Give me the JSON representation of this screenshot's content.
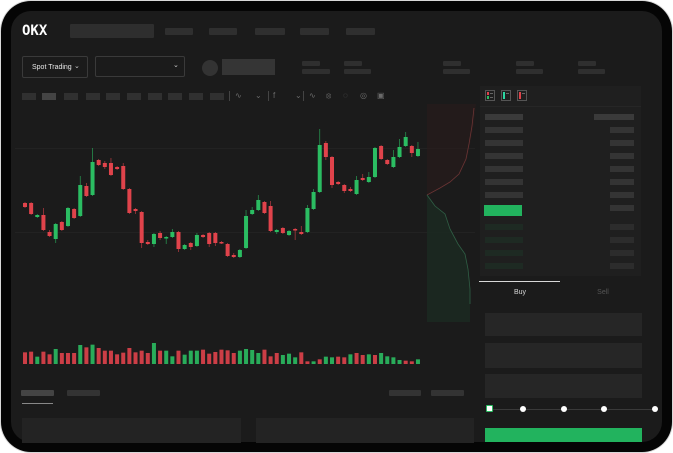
{
  "header": {
    "logo_text": "OKX",
    "market_type_dropdown": "Spot Trading",
    "pair_dropdown": ""
  },
  "colors": {
    "up": "#2bbd62",
    "down": "#e0434b",
    "background": "#1b1b1b",
    "panel": "#1f1f1f",
    "placeholder": "#2f2f2f",
    "buy_button": "#22b35e"
  },
  "orderbook": {
    "view_icons": [
      "orderbook-both-icon",
      "orderbook-bids-icon",
      "orderbook-asks-icon"
    ]
  },
  "trade_form": {
    "tabs": [
      {
        "label": "Buy",
        "active": true
      },
      {
        "label": "Sell",
        "active": false
      }
    ],
    "slider_value_percent": 0,
    "slider_stops": [
      0,
      25,
      50,
      75,
      100
    ]
  },
  "toolbar": {
    "icons": [
      "chart-type-icon",
      "indicator-icon",
      "drawing-line-icon",
      "ruler-icon",
      "snapshot-icon",
      "settings-icon",
      "fullscreen-icon"
    ]
  },
  "price_chart": {
    "type": "candlestick",
    "ohlc": [
      [
        97,
        98,
        92,
        93
      ],
      [
        97,
        98,
        85,
        86
      ],
      [
        83,
        86,
        82,
        85
      ],
      [
        85,
        92,
        69,
        70
      ],
      [
        68,
        70,
        63,
        64
      ],
      [
        61,
        77,
        57,
        76
      ],
      [
        78,
        79,
        69,
        70
      ],
      [
        74,
        93,
        73,
        92
      ],
      [
        91,
        92,
        81,
        82
      ],
      [
        84,
        124,
        83,
        115
      ],
      [
        114,
        117,
        103,
        104
      ],
      [
        105,
        152,
        104,
        138
      ],
      [
        140,
        141,
        134,
        135
      ],
      [
        137,
        139,
        131,
        133
      ],
      [
        137,
        142,
        124,
        125
      ],
      [
        133,
        134,
        130,
        131
      ],
      [
        134,
        137,
        110,
        111
      ],
      [
        111,
        112,
        86,
        87
      ],
      [
        91,
        92,
        86,
        89
      ],
      [
        88,
        89,
        52,
        57
      ],
      [
        58,
        60,
        55,
        56
      ],
      [
        56,
        67,
        53,
        66
      ],
      [
        67,
        69,
        60,
        62
      ],
      [
        62,
        64,
        56,
        63
      ],
      [
        63,
        71,
        62,
        68
      ],
      [
        68,
        69,
        48,
        51
      ],
      [
        51,
        56,
        50,
        55
      ],
      [
        57,
        58,
        50,
        53
      ],
      [
        54,
        67,
        53,
        65
      ],
      [
        65,
        66,
        62,
        63
      ],
      [
        67,
        68,
        53,
        56
      ],
      [
        67,
        68,
        54,
        57
      ],
      [
        58,
        59,
        56,
        57
      ],
      [
        56,
        57,
        43,
        44
      ],
      [
        45,
        47,
        42,
        43
      ],
      [
        43,
        51,
        42,
        50
      ],
      [
        52,
        90,
        51,
        84
      ],
      [
        86,
        93,
        85,
        90
      ],
      [
        90,
        105,
        89,
        100
      ],
      [
        98,
        99,
        86,
        87
      ],
      [
        94,
        99,
        68,
        69
      ],
      [
        68,
        71,
        66,
        70
      ],
      [
        72,
        73,
        66,
        67
      ],
      [
        65,
        70,
        64,
        69
      ],
      [
        71,
        72,
        60,
        70
      ],
      [
        68,
        74,
        65,
        66
      ],
      [
        68,
        95,
        67,
        92
      ],
      [
        91,
        111,
        90,
        108
      ],
      [
        108,
        171,
        107,
        155
      ],
      [
        157,
        159,
        140,
        143
      ],
      [
        143,
        144,
        112,
        115
      ],
      [
        118,
        119,
        115,
        116
      ],
      [
        115,
        116,
        107,
        109
      ],
      [
        111,
        113,
        108,
        109
      ],
      [
        106,
        124,
        105,
        120
      ],
      [
        122,
        126,
        119,
        120
      ],
      [
        118,
        128,
        117,
        123
      ],
      [
        123,
        153,
        122,
        152
      ],
      [
        154,
        155,
        140,
        141
      ],
      [
        140,
        141,
        135,
        136
      ],
      [
        133,
        150,
        132,
        143
      ],
      [
        143,
        161,
        142,
        153
      ],
      [
        154,
        168,
        153,
        163
      ],
      [
        154,
        155,
        143,
        147
      ],
      [
        144,
        158,
        143,
        151
      ]
    ],
    "volume": [
      [
        35,
        "down"
      ],
      [
        37,
        "down"
      ],
      [
        22,
        "up"
      ],
      [
        37,
        "down"
      ],
      [
        29,
        "down"
      ],
      [
        45,
        "up"
      ],
      [
        33,
        "down"
      ],
      [
        33,
        "down"
      ],
      [
        33,
        "down"
      ],
      [
        57,
        "up"
      ],
      [
        50,
        "down"
      ],
      [
        58,
        "up"
      ],
      [
        48,
        "down"
      ],
      [
        40,
        "down"
      ],
      [
        40,
        "down"
      ],
      [
        29,
        "down"
      ],
      [
        34,
        "down"
      ],
      [
        48,
        "down"
      ],
      [
        35,
        "down"
      ],
      [
        40,
        "down"
      ],
      [
        33,
        "down"
      ],
      [
        63,
        "up"
      ],
      [
        40,
        "down"
      ],
      [
        40,
        "up"
      ],
      [
        23,
        "up"
      ],
      [
        40,
        "down"
      ],
      [
        28,
        "up"
      ],
      [
        40,
        "up"
      ],
      [
        40,
        "up"
      ],
      [
        43,
        "down"
      ],
      [
        31,
        "down"
      ],
      [
        36,
        "down"
      ],
      [
        43,
        "down"
      ],
      [
        41,
        "down"
      ],
      [
        33,
        "down"
      ],
      [
        40,
        "up"
      ],
      [
        45,
        "up"
      ],
      [
        42,
        "up"
      ],
      [
        33,
        "up"
      ],
      [
        43,
        "down"
      ],
      [
        23,
        "down"
      ],
      [
        33,
        "down"
      ],
      [
        27,
        "up"
      ],
      [
        31,
        "up"
      ],
      [
        20,
        "up"
      ],
      [
        35,
        "down"
      ],
      [
        8,
        "down"
      ],
      [
        8,
        "up"
      ],
      [
        14,
        "down"
      ],
      [
        22,
        "up"
      ],
      [
        20,
        "up"
      ],
      [
        22,
        "down"
      ],
      [
        20,
        "down"
      ],
      [
        29,
        "up"
      ],
      [
        33,
        "down"
      ],
      [
        27,
        "down"
      ],
      [
        29,
        "up"
      ],
      [
        27,
        "down"
      ],
      [
        33,
        "up"
      ],
      [
        23,
        "up"
      ],
      [
        20,
        "up"
      ],
      [
        12,
        "up"
      ],
      [
        10,
        "down"
      ],
      [
        8,
        "down"
      ],
      [
        14,
        "up"
      ]
    ]
  }
}
